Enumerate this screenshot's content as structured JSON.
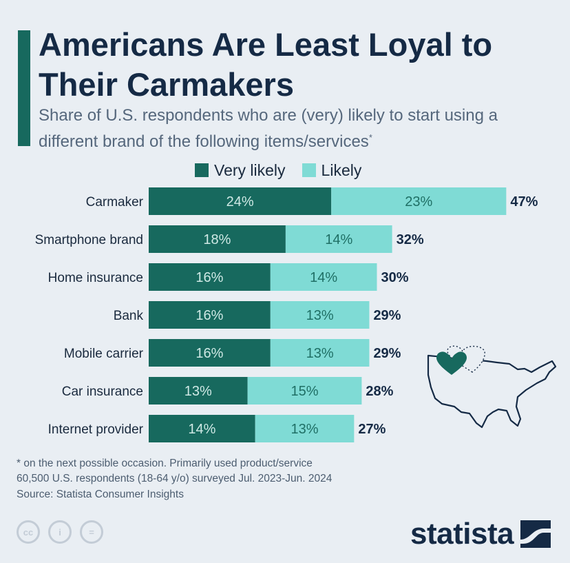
{
  "header": {
    "title": "Americans Are Least Loyal to Their Carmakers",
    "subtitle": "Share of U.S. respondents who are (very) likely to start using a different brand of the following items/services",
    "subtitle_mark": "*"
  },
  "colors": {
    "very_likely": "#17695e",
    "likely": "#7fdbd5",
    "accent": "#17695e",
    "text_dark": "#152a45"
  },
  "chart_data": {
    "type": "bar",
    "orientation": "horizontal",
    "stacked": true,
    "categories": [
      "Carmaker",
      "Smartphone brand",
      "Home insurance",
      "Bank",
      "Mobile carrier",
      "Car insurance",
      "Internet provider"
    ],
    "series": [
      {
        "name": "Very likely",
        "values": [
          24,
          18,
          16,
          16,
          16,
          13,
          14
        ]
      },
      {
        "name": "Likely",
        "values": [
          23,
          14,
          14,
          13,
          13,
          15,
          13
        ]
      }
    ],
    "totals": [
      47,
      32,
      30,
      29,
      29,
      28,
      27
    ],
    "unit": "%",
    "legend_position": "top"
  },
  "footer": {
    "note_line1": "* on the next possible occasion. Primarily used product/service",
    "note_line2": "60,500 U.S. respondents (18-64 y/o) surveyed Jul. 2023-Jun. 2024",
    "source": "Source: Statista Consumer Insights",
    "brand": "statista",
    "license_icons": [
      "cc-icon",
      "person-icon",
      "equals-icon"
    ],
    "license_labels": [
      "cc",
      "i",
      "="
    ]
  }
}
